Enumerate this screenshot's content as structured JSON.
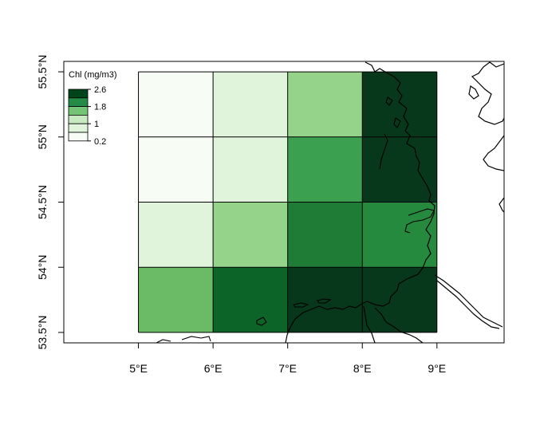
{
  "chart_data": {
    "type": "heatmap",
    "legend": {
      "title": "Chl (mg/m3)",
      "tick_labels": [
        "2.6",
        "1.8",
        "1",
        "0.2"
      ],
      "tick_values": [
        2.6,
        1.8,
        1.0,
        0.2
      ],
      "bins": [
        {
          "min": 0.2,
          "max": 0.6,
          "color": "#f7fcf5"
        },
        {
          "min": 0.6,
          "max": 1.0,
          "color": "#e0f3db"
        },
        {
          "min": 1.0,
          "max": 1.4,
          "color": "#c7e9c0"
        },
        {
          "min": 1.4,
          "max": 1.8,
          "color": "#74c476"
        },
        {
          "min": 1.8,
          "max": 2.2,
          "color": "#238b45"
        },
        {
          "min": 2.2,
          "max": 2.6,
          "color": "#00441b"
        }
      ],
      "placement": "top-left"
    },
    "x_tick_labels": [
      "5°E",
      "6°E",
      "7°E",
      "8°E",
      "9°E"
    ],
    "x_tick_values": [
      5,
      6,
      7,
      8,
      9
    ],
    "y_tick_labels": [
      "53.5°N",
      "54°N",
      "54.5°N",
      "55°N",
      "55.5°N"
    ],
    "y_tick_values": [
      53.5,
      54.0,
      54.5,
      55.0,
      55.5
    ],
    "xlim": [
      4.0,
      9.9
    ],
    "ylim": [
      53.42,
      55.58
    ],
    "grid": {
      "lon_edges": [
        5,
        6,
        7,
        8,
        9
      ],
      "lat_edges": [
        53.5,
        54.0,
        54.5,
        55.0,
        55.5
      ],
      "rows_north_to_south": [
        {
          "lat_range": [
            55.0,
            55.5
          ],
          "colors": [
            "#f7fcf5",
            "#e0f3db",
            "#95d38a",
            "#08381b"
          ]
        },
        {
          "lat_range": [
            54.5,
            55.0
          ],
          "colors": [
            "#f7fcf5",
            "#e0f3db",
            "#3ba150",
            "#08381b"
          ]
        },
        {
          "lat_range": [
            54.0,
            54.5
          ],
          "colors": [
            "#e0f3db",
            "#95d38a",
            "#1f7c37",
            "#258a3e"
          ]
        },
        {
          "lat_range": [
            53.5,
            54.0
          ],
          "colors": [
            "#6aba66",
            "#0d6428",
            "#08381b",
            "#08381b"
          ]
        }
      ]
    },
    "grid_lines": true,
    "coastline_color": "#000000"
  }
}
